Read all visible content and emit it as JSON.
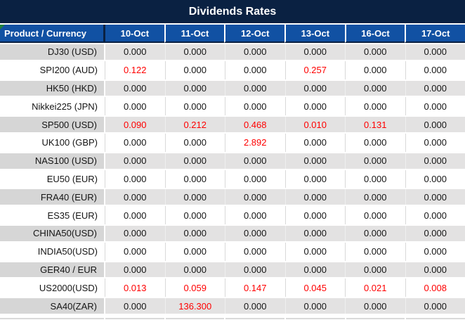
{
  "title": "Dividends Rates",
  "table": {
    "product_header": "Product / Currency",
    "date_headers": [
      "10-Oct",
      "11-Oct",
      "12-Oct",
      "13-Oct",
      "16-Oct",
      "17-Oct"
    ],
    "rows": [
      {
        "product": "DJ30 (USD)",
        "values": [
          "0.000",
          "0.000",
          "0.000",
          "0.000",
          "0.000",
          "0.000"
        ],
        "red_columns": []
      },
      {
        "product": "SPI200 (AUD)",
        "values": [
          "0.122",
          "0.000",
          "0.000",
          "0.257",
          "0.000",
          "0.000"
        ],
        "red_columns": [
          0,
          3
        ]
      },
      {
        "product": "HK50 (HKD)",
        "values": [
          "0.000",
          "0.000",
          "0.000",
          "0.000",
          "0.000",
          "0.000"
        ],
        "red_columns": []
      },
      {
        "product": "Nikkei225 (JPN)",
        "values": [
          "0.000",
          "0.000",
          "0.000",
          "0.000",
          "0.000",
          "0.000"
        ],
        "red_columns": []
      },
      {
        "product": "SP500 (USD)",
        "values": [
          "0.090",
          "0.212",
          "0.468",
          "0.010",
          "0.131",
          "0.000"
        ],
        "red_columns": [
          0,
          1,
          2,
          3,
          4
        ]
      },
      {
        "product": "UK100 (GBP)",
        "values": [
          "0.000",
          "0.000",
          "2.892",
          "0.000",
          "0.000",
          "0.000"
        ],
        "red_columns": [
          2
        ]
      },
      {
        "product": "NAS100 (USD)",
        "values": [
          "0.000",
          "0.000",
          "0.000",
          "0.000",
          "0.000",
          "0.000"
        ],
        "red_columns": []
      },
      {
        "product": "EU50 (EUR)",
        "values": [
          "0.000",
          "0.000",
          "0.000",
          "0.000",
          "0.000",
          "0.000"
        ],
        "red_columns": []
      },
      {
        "product": "FRA40 (EUR)",
        "values": [
          "0.000",
          "0.000",
          "0.000",
          "0.000",
          "0.000",
          "0.000"
        ],
        "red_columns": []
      },
      {
        "product": "ES35 (EUR)",
        "values": [
          "0.000",
          "0.000",
          "0.000",
          "0.000",
          "0.000",
          "0.000"
        ],
        "red_columns": []
      },
      {
        "product": "CHINA50(USD)",
        "values": [
          "0.000",
          "0.000",
          "0.000",
          "0.000",
          "0.000",
          "0.000"
        ],
        "red_columns": []
      },
      {
        "product": "INDIA50(USD)",
        "values": [
          "0.000",
          "0.000",
          "0.000",
          "0.000",
          "0.000",
          "0.000"
        ],
        "red_columns": []
      },
      {
        "product": "GER40 / EUR",
        "values": [
          "0.000",
          "0.000",
          "0.000",
          "0.000",
          "0.000",
          "0.000"
        ],
        "red_columns": []
      },
      {
        "product": "US2000(USD)",
        "values": [
          "0.013",
          "0.059",
          "0.147",
          "0.045",
          "0.021",
          "0.008"
        ],
        "red_columns": [
          0,
          1,
          2,
          3,
          4,
          5
        ]
      },
      {
        "product": "SA40(ZAR)",
        "values": [
          "0.000",
          "136.300",
          "0.000",
          "0.000",
          "0.000",
          "0.000"
        ],
        "red_columns": [
          1
        ]
      }
    ]
  },
  "colors": {
    "title_bg": "#0A2142",
    "header_bg": "#1151A3",
    "negative_value_red": "#FF0000",
    "row_alt_bg": "#E3E2E2",
    "row_alt_product_bg": "#D6D6D6",
    "grid_line": "#D9D9D9",
    "comment_indicator_green": "#21803C"
  }
}
